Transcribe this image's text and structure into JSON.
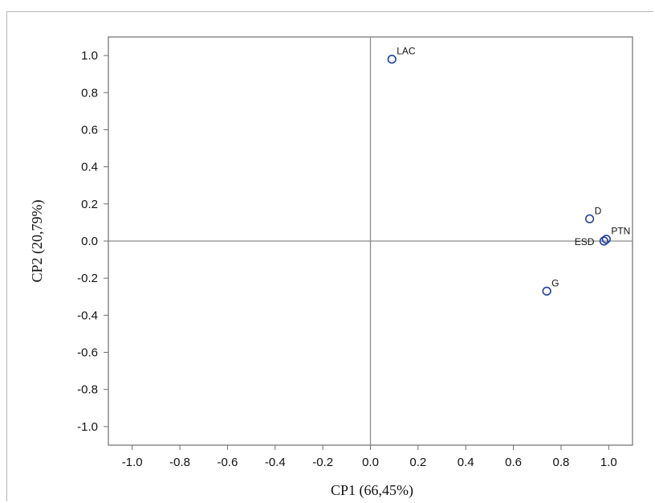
{
  "chart_data": {
    "type": "scatter",
    "title": "",
    "xlabel": "CP1 (66,45%)",
    "ylabel": "CP2 (20,79%)",
    "xlim": [
      -1.1,
      1.1
    ],
    "ylim": [
      -1.1,
      1.1
    ],
    "x_ticks": [
      "-1.0",
      "-0.8",
      "-0.6",
      "-0.4",
      "-0.2",
      "0.0",
      "0.2",
      "0.4",
      "0.6",
      "0.8",
      "1.0"
    ],
    "y_ticks": [
      "1.0",
      "0.8",
      "0.6",
      "0.4",
      "0.2",
      "0.0",
      "-0.2",
      "-0.4",
      "-0.6",
      "-0.8",
      "-1.0"
    ],
    "grid": false,
    "reference_lines": {
      "x": 0,
      "y": 0
    },
    "marker_color": "#1f3f9f",
    "points": [
      {
        "label": "LAC",
        "x": 0.09,
        "y": 0.98
      },
      {
        "label": "D",
        "x": 0.92,
        "y": 0.12
      },
      {
        "label": "PTN",
        "x": 0.99,
        "y": 0.01
      },
      {
        "label": "ESD",
        "x": 0.98,
        "y": 0.0
      },
      {
        "label": "G",
        "x": 0.74,
        "y": -0.27
      }
    ]
  }
}
